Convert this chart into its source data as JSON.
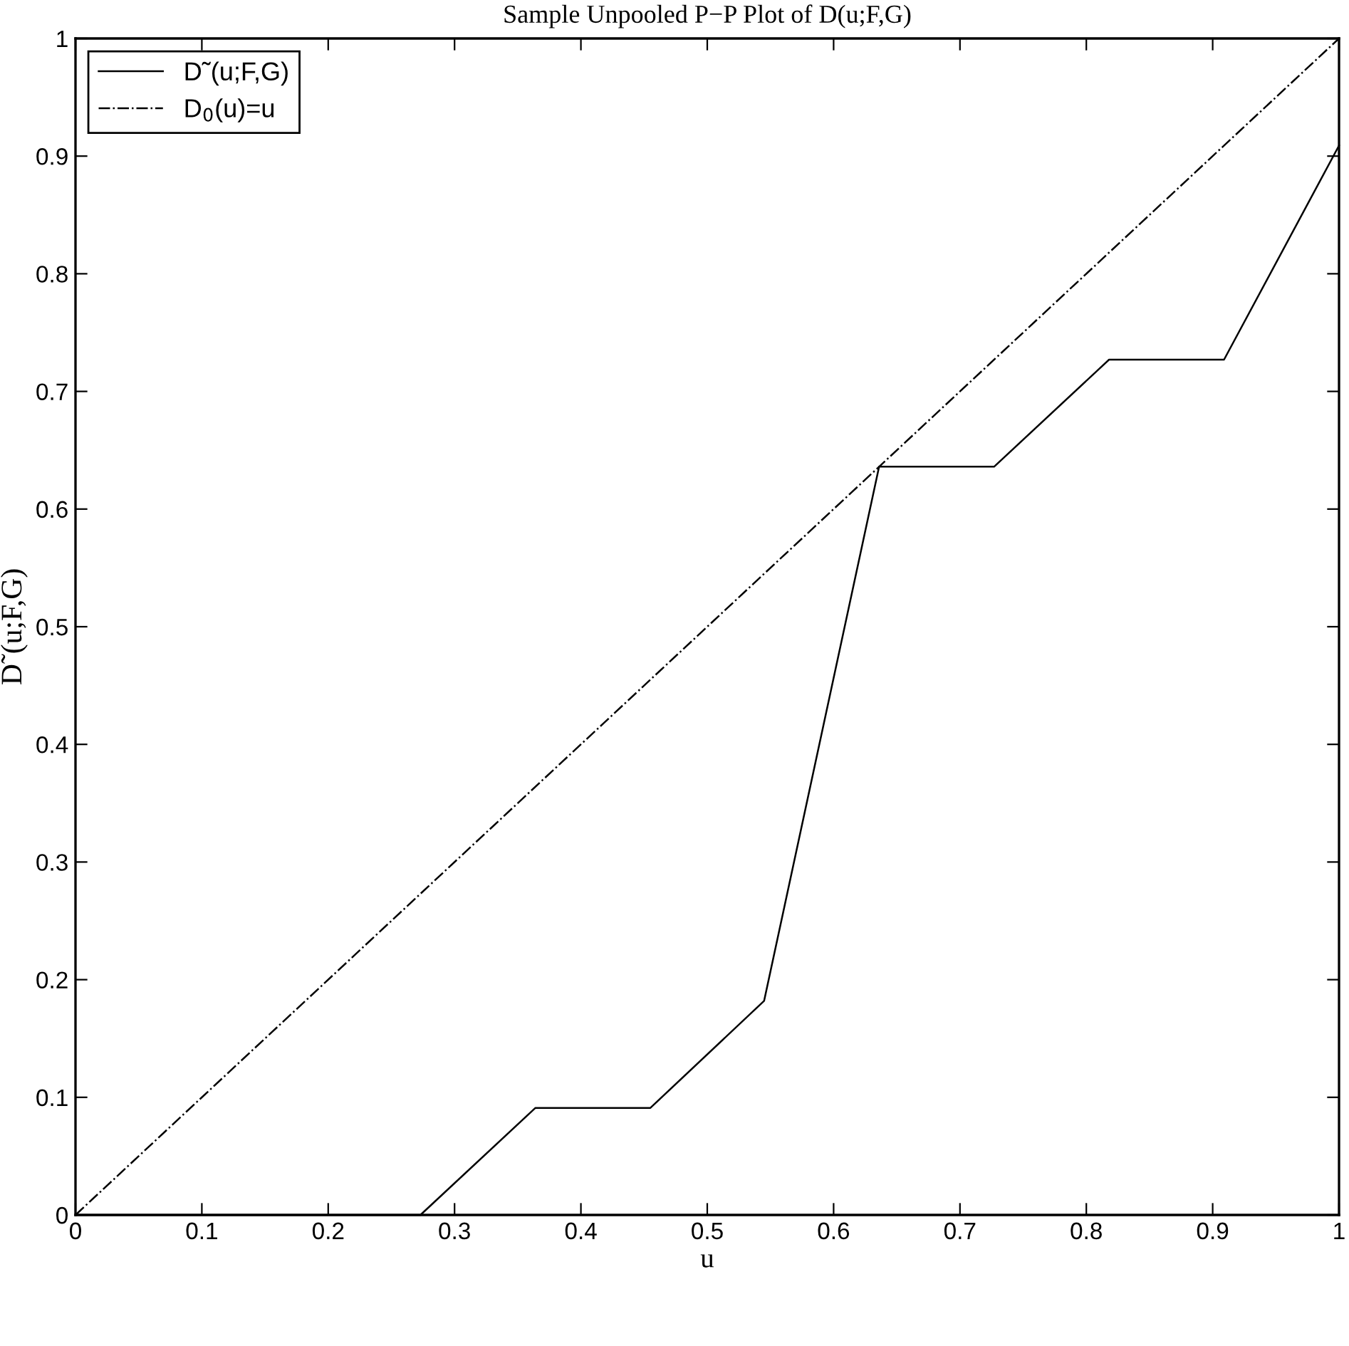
{
  "chart_data": {
    "type": "line",
    "title": "Sample Unpooled P−P Plot of D(u;F,G)",
    "xlabel": "u",
    "ylabel": "D˜(u;F,G)",
    "xlim": [
      0,
      1
    ],
    "ylim": [
      0,
      1
    ],
    "xticks": [
      0,
      0.1,
      0.2,
      0.3,
      0.4,
      0.5,
      0.6,
      0.7,
      0.8,
      0.9,
      1
    ],
    "yticks": [
      0,
      0.1,
      0.2,
      0.3,
      0.4,
      0.5,
      0.6,
      0.7,
      0.8,
      0.9,
      1
    ],
    "grid": false,
    "legend": "top left",
    "marker": "none",
    "series": [
      {
        "name": "D˜(u;F,G)",
        "color": "#000000",
        "line_style": "solid",
        "x": [
          0,
          0.091,
          0.182,
          0.273,
          0.364,
          0.455,
          0.545,
          0.636,
          0.727,
          0.818,
          0.909,
          1
        ],
        "values": [
          0,
          0,
          0,
          0,
          0.091,
          0.091,
          0.182,
          0.636,
          0.636,
          0.727,
          0.727,
          0.909
        ]
      },
      {
        "name": "D$_{0}$(u)=u",
        "color": "#000000",
        "line_style": "dashdot",
        "x": [
          0,
          1
        ],
        "values": [
          0,
          1
        ]
      }
    ]
  }
}
